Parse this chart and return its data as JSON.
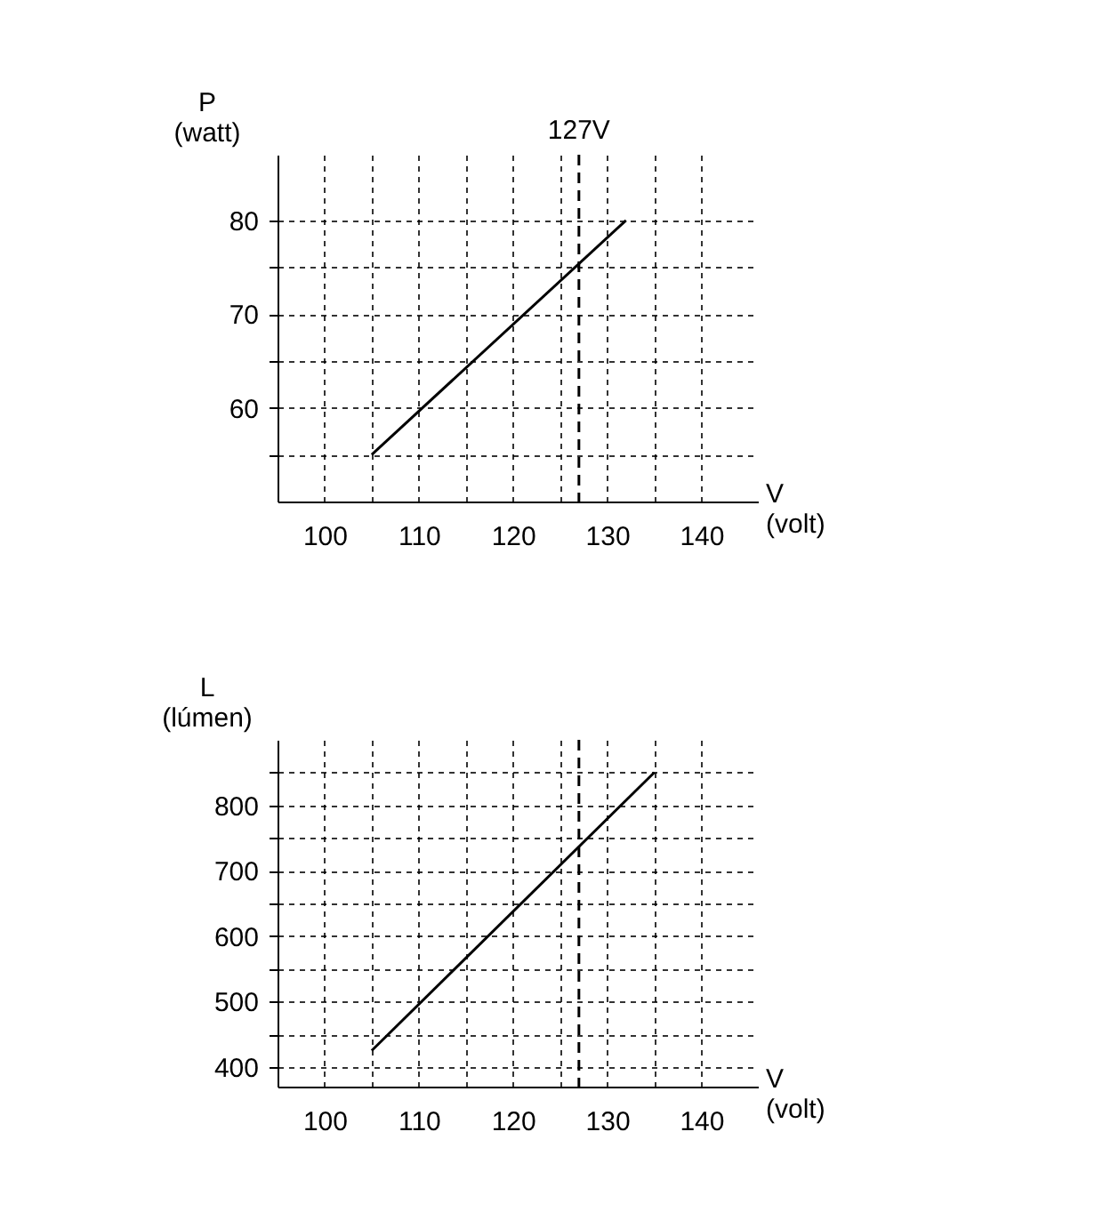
{
  "chart_data": [
    {
      "type": "line",
      "xlabel": "V (volt)",
      "ylabel": "P (watt)",
      "x": [
        105,
        132
      ],
      "series": [
        {
          "color": "#000000",
          "values": [
            55,
            80
          ]
        }
      ],
      "xlim": [
        95,
        146
      ],
      "ylim": [
        50,
        87
      ],
      "xticks": [
        100,
        {
          "value": 105,
          "label": null
        },
        110,
        {
          "value": 115,
          "label": null
        },
        120,
        {
          "value": 125,
          "label": null
        },
        130,
        {
          "value": 135,
          "label": null
        },
        140
      ],
      "yticks": [
        {
          "value": 55,
          "label": null
        },
        60,
        {
          "value": 65,
          "label": null
        },
        70,
        {
          "value": 75,
          "label": null
        },
        80
      ],
      "ref_lines": [
        {
          "axis": "x",
          "value": 127,
          "label": "127V",
          "line_style": "dashed"
        }
      ],
      "grid": true,
      "line_style": "solid",
      "marker": "none"
    },
    {
      "type": "line",
      "xlabel": "V (volt)",
      "ylabel": "L (lúmen)",
      "x": [
        105,
        135
      ],
      "series": [
        {
          "color": "#000000",
          "values": [
            425,
            850
          ]
        }
      ],
      "xlim": [
        95,
        146
      ],
      "ylim": [
        370,
        900
      ],
      "xticks": [
        100,
        {
          "value": 105,
          "label": null
        },
        110,
        {
          "value": 115,
          "label": null
        },
        120,
        {
          "value": 125,
          "label": null
        },
        130,
        {
          "value": 135,
          "label": null
        },
        140
      ],
      "yticks": [
        400,
        {
          "value": 450,
          "label": null
        },
        500,
        {
          "value": 550,
          "label": null
        },
        600,
        {
          "value": 650,
          "label": null
        },
        700,
        {
          "value": 750,
          "label": null
        },
        800,
        {
          "value": 850,
          "label": null
        }
      ],
      "ref_lines": [
        {
          "axis": "x",
          "value": 127,
          "line_style": "dashed"
        }
      ],
      "grid": true,
      "line_style": "solid",
      "marker": "none"
    }
  ]
}
